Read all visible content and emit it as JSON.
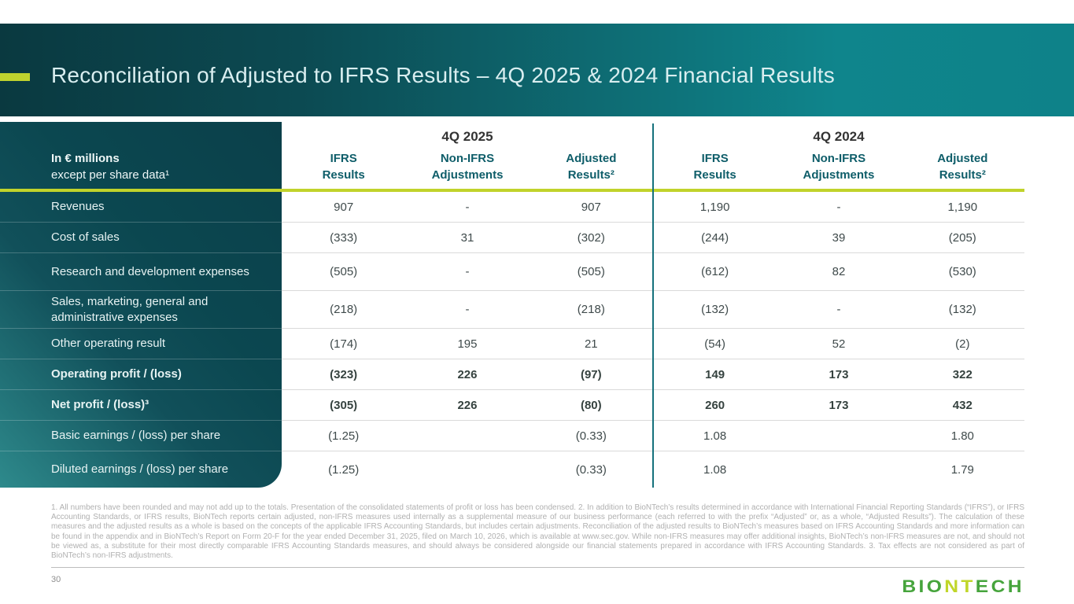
{
  "slide": {
    "title": "Reconciliation of Adjusted to IFRS Results – 4Q 2025 & 2024 Financial Results",
    "page_number": "30",
    "logo": {
      "bio": "BIO",
      "nt": "NT",
      "ech": "ECH"
    },
    "footnote": "1. All numbers have been rounded and may not add up to the totals. Presentation of the consolidated statements of profit or loss has been condensed. 2. In addition to BioNTech’s results determined in accordance with International Financial Reporting Standards (“IFRS”), or IFRS Accounting Standards, or IFRS results, BioNTech reports certain adjusted, non-IFRS measures used internally as a supplemental measure of our business performance (each referred to with the prefix “Adjusted” or, as a whole, “Adjusted Results”). The calculation of these measures and the adjusted results as a whole is based on the concepts of the applicable IFRS Accounting Standards, but includes certain adjustments. Reconciliation of the adjusted results to BioNTech’s measures based on IFRS Accounting Standards and more information can be found in the appendix and in BioNTech’s Report on Form 20-F for the year ended December 31, 2025, filed on March 10, 2026, which is available at www.sec.gov. While non-IFRS measures may offer additional insights, BioNTech’s non-IFRS measures are not, and should not be viewed as, a substitute for their most directly comparable IFRS Accounting Standards measures, and should always be considered alongside our financial statements prepared in accordance with IFRS Accounting Standards. 3. Tax effects are not considered as part of BioNTech’s non-IFRS adjustments."
  },
  "table": {
    "corner_line1": "In € millions",
    "corner_line2": "except per share data¹",
    "group_2025": "4Q 2025",
    "group_2024": "4Q 2024",
    "col_headers": [
      {
        "l1": "IFRS",
        "l2": "Results"
      },
      {
        "l1": "Non-IFRS",
        "l2": "Adjustments"
      },
      {
        "l1": "Adjusted",
        "l2": "Results²"
      },
      {
        "l1": "IFRS",
        "l2": "Results"
      },
      {
        "l1": "Non-IFRS",
        "l2": "Adjustments"
      },
      {
        "l1": "Adjusted",
        "l2": "Results²"
      }
    ],
    "rows": [
      {
        "label": "Revenues",
        "values": [
          "907",
          "-",
          "907",
          "1,190",
          "-",
          "1,190"
        ]
      },
      {
        "label": "Cost of sales",
        "values": [
          "(333)",
          "31",
          "(302)",
          "(244)",
          "39",
          "(205)"
        ]
      },
      {
        "label": "Research and development expenses",
        "values": [
          "(505)",
          "-",
          "(505)",
          "(612)",
          "82",
          "(530)"
        ]
      },
      {
        "label": "Sales, marketing, general and administrative expenses",
        "values": [
          "(218)",
          "-",
          "(218)",
          "(132)",
          "-",
          "(132)"
        ]
      },
      {
        "label": "Other operating result",
        "values": [
          "(174)",
          "195",
          "21",
          "(54)",
          "52",
          "(2)"
        ]
      },
      {
        "label": "Operating profit / (loss)",
        "values": [
          "(323)",
          "226",
          "(97)",
          "149",
          "173",
          "322"
        ]
      },
      {
        "label": "Net profit / (loss)³",
        "values": [
          "(305)",
          "226",
          "(80)",
          "260",
          "173",
          "432"
        ]
      },
      {
        "label": "Basic earnings / (loss) per share",
        "values": [
          "(1.25)",
          "",
          "(0.33)",
          "1.08",
          "",
          "1.80"
        ]
      },
      {
        "label": "Diluted earnings / (loss) per share",
        "values": [
          "(1.25)",
          "",
          "(0.33)",
          "1.08",
          "",
          "1.79"
        ]
      }
    ]
  },
  "colors": {
    "accent_lime": "#c1d32b",
    "band_dark_teal": "#0a3940",
    "band_light_teal": "#0f858c",
    "column_header_text": "#0e5d69",
    "value_text": "#3f4a4b",
    "logo_green": "#46a43c",
    "logo_lime": "#c0d62a"
  }
}
